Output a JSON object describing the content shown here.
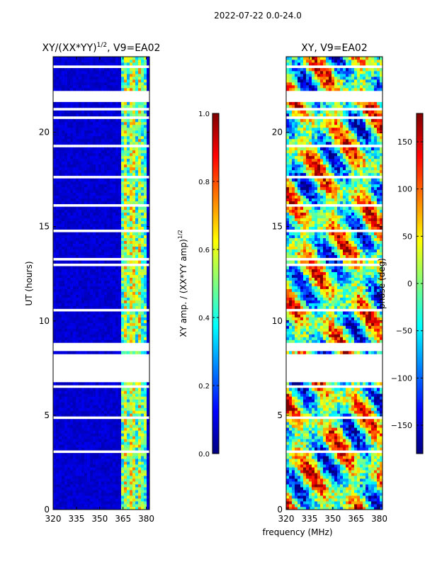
{
  "figure": {
    "suptitle": "2022-07-22 0.0-24.0",
    "shared_xlabel": "frequency (MHz)"
  },
  "chart_data": [
    {
      "type": "heatmap",
      "title": "XY/(XX*YY)",
      "title_sup": "1/2",
      "title_suffix": ", V9=EA02",
      "xlabel": "frequency (MHz)",
      "ylabel": "UT (hours)",
      "xlim": [
        320,
        382
      ],
      "ylim": [
        0,
        24
      ],
      "xticks": [
        320,
        335,
        350,
        365,
        380
      ],
      "yticks": [
        0,
        5,
        10,
        15,
        20
      ],
      "colorbar": {
        "label": "XY amp. / (XX*YY amp)",
        "label_sup": "1/2",
        "range": [
          0.0,
          1.0
        ],
        "ticks": [
          "0.0",
          "0.2",
          "0.4",
          "0.6",
          "0.8",
          "1.0"
        ],
        "tick_values": [
          0.0,
          0.2,
          0.4,
          0.6,
          0.8,
          1.0
        ],
        "colormap": "jet"
      },
      "features": {
        "background_level": 0.05,
        "bright_band_mhz": [
          363,
          380
        ],
        "bright_band_level": 0.45,
        "flagged_block_hours": [
          6.4,
          8.9
        ]
      }
    },
    {
      "type": "heatmap",
      "title": "XY, V9=EA02",
      "xlabel": "frequency (MHz)",
      "ylabel": "",
      "xlim": [
        320,
        382
      ],
      "ylim": [
        0,
        24
      ],
      "xticks": [
        320,
        335,
        350,
        365,
        380
      ],
      "yticks": [
        0,
        5,
        10,
        15,
        20
      ],
      "colorbar": {
        "label": "phase (deg)",
        "range": [
          -180,
          180
        ],
        "ticks": [
          "−150",
          "−100",
          "−50",
          "0",
          "50",
          "100",
          "150"
        ],
        "tick_values": [
          -150,
          -100,
          -50,
          0,
          50,
          100,
          150
        ],
        "colormap": "jet"
      },
      "features": {
        "flagged_block_hours": [
          6.4,
          8.9
        ]
      }
    }
  ]
}
